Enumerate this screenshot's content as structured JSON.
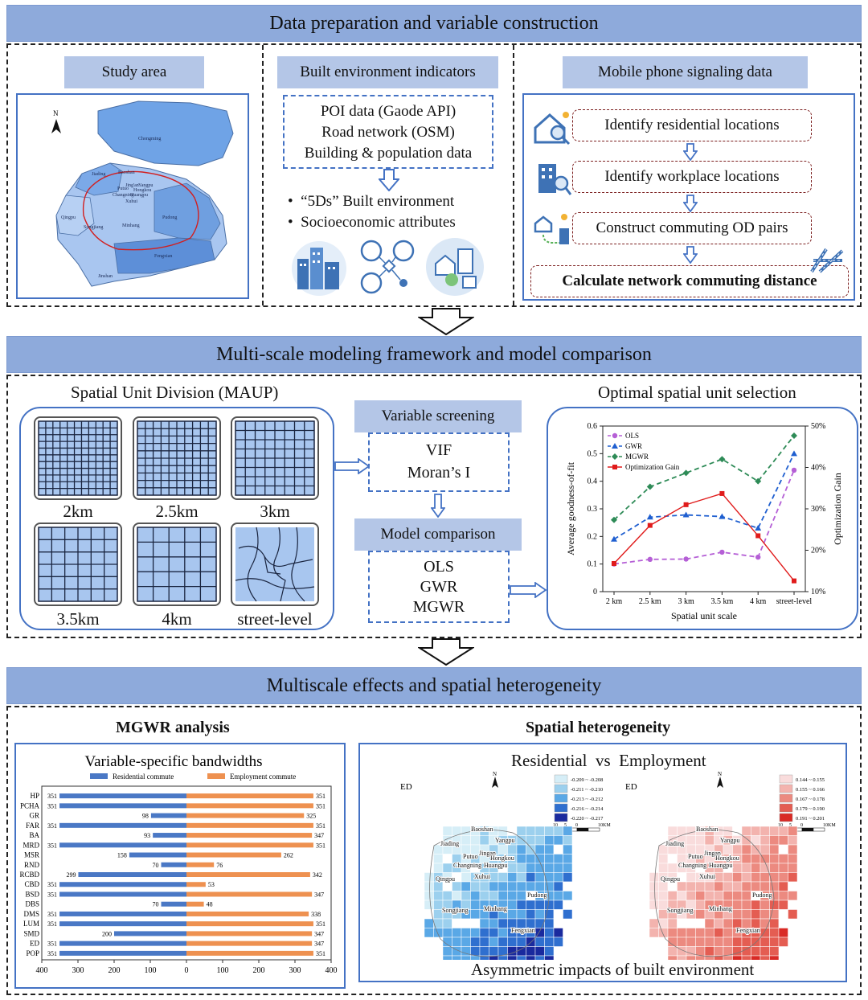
{
  "section1": {
    "banner": "Data preparation and variable construction",
    "study_area": {
      "title": "Study area",
      "north": "N",
      "districts": [
        "Chongming",
        "Jiading",
        "Baoshan",
        "Yangpu",
        "Putuo",
        "Jing'an",
        "Hongkou",
        "Changning",
        "Huangpu",
        "Xuhui",
        "Qingpu",
        "Songjiang",
        "Minhang",
        "Pudong",
        "Jinshan",
        "Fengxian"
      ]
    },
    "built_env": {
      "title": "Built environment indicators",
      "sources": [
        "POI data (Gaode API)",
        "Road network (OSM)",
        "Building & population data"
      ],
      "bullets": [
        "“5Ds” Built environment",
        "Socioeconomic attributes"
      ]
    },
    "mobile": {
      "title": "Mobile phone signaling data",
      "steps": [
        "Identify residential locations",
        "Identify workplace locations",
        "Construct commuting OD pairs",
        "Calculate network commuting distance"
      ]
    }
  },
  "section2": {
    "banner": "Multi-scale modeling framework and model comparison",
    "spatial_division": {
      "title": "Spatial Unit Division (MAUP)",
      "scales": [
        "2km",
        "2.5km",
        "3km",
        "3.5km",
        "4km",
        "street-level"
      ]
    },
    "variable_screening": {
      "title": "Variable screening",
      "items": [
        "VIF",
        "Moran’s I"
      ]
    },
    "model_comparison": {
      "title": "Model comparison",
      "items": [
        "OLS",
        "GWR",
        "MGWR"
      ]
    },
    "optimal": {
      "title": "Optimal spatial unit selection"
    }
  },
  "section3": {
    "banner": "Multiscale effects and spatial heterogeneity",
    "mgwr_title": "MGWR analysis",
    "spatial_title": "Spatial heterogeneity",
    "map_title": "Residential  vs  Employment",
    "map_caption": "Asymmetric impacts of built environment",
    "map_var": "ED",
    "north": "N",
    "scale_ticks": [
      "10",
      "5",
      "0",
      "10KM"
    ],
    "legend_blue": [
      "-0.209 ~ -0.208",
      "-0.211 ~ -0.210",
      "-0.213 ~ -0.212",
      "-0.216 ~ -0.214",
      "-0.220 ~ -0.217"
    ],
    "legend_red": [
      "0.144 ~ 0.155",
      "0.155 ~ 0.166",
      "0.167 ~ 0.178",
      "0.179 ~ 0.190",
      "0.191 ~ 0.201"
    ],
    "map_labels": [
      "Baoshan",
      "Jiading",
      "Yangpu",
      "Jingan",
      "Hongkou",
      "Putuo",
      "Changning",
      "Huangpu",
      "Qingpu",
      "Xuhui",
      "Pudong",
      "Songjiang",
      "Minhang",
      "Fengxian"
    ],
    "blue_colors": [
      "#d6eef7",
      "#9cd0ee",
      "#5aa8e6",
      "#2f6fcf",
      "#1a2a9e"
    ],
    "red_colors": [
      "#f9dcdc",
      "#f3b3ae",
      "#ec8a80",
      "#e45d52",
      "#d92a25"
    ]
  },
  "chart_data": [
    {
      "type": "line",
      "x": [
        "2 km",
        "2.5 km",
        "3 km",
        "3.5 km",
        "4 km",
        "street-level"
      ],
      "xlabel": "Spatial unit scale",
      "ylabel": "Average goodness-of-fit",
      "y2label": "Optimization Gain",
      "ylim": [
        0,
        0.6
      ],
      "y2lim": [
        10,
        50
      ],
      "yticks": [
        "0",
        "0.1",
        "0.2",
        "0.3",
        "0.4",
        "0.5",
        "0.6"
      ],
      "y2ticks": [
        "10%",
        "20%",
        "30%",
        "40%",
        "50%"
      ],
      "legend_position": "top-left",
      "series": [
        {
          "name": "OLS",
          "axis": "left",
          "color": "#b55fd6",
          "marker": "circle",
          "dash": true,
          "values": [
            0.1,
            0.117,
            0.118,
            0.143,
            0.125,
            0.44
          ]
        },
        {
          "name": "GWR",
          "axis": "left",
          "color": "#1f5fd0",
          "marker": "triangle",
          "dash": true,
          "values": [
            0.19,
            0.27,
            0.278,
            0.272,
            0.23,
            0.5
          ]
        },
        {
          "name": "MGWR",
          "axis": "left",
          "color": "#2e8b57",
          "marker": "diamond",
          "dash": true,
          "values": [
            0.26,
            0.38,
            0.43,
            0.48,
            0.4,
            0.565
          ]
        },
        {
          "name": "Optimization Gain",
          "axis": "right",
          "color": "#e01b1b",
          "marker": "square",
          "dash": false,
          "values": [
            16.8,
            26.0,
            31.0,
            33.7,
            23.5,
            12.6
          ]
        }
      ]
    },
    {
      "type": "bar",
      "title": "Variable-specific bandwidths",
      "categories": [
        "HP",
        "PCHA",
        "GR",
        "FAR",
        "BA",
        "MRD",
        "MSR",
        "RND",
        "RCBD",
        "CBD",
        "BSD",
        "DBS",
        "DMS",
        "LUM",
        "SMD",
        "ED",
        "POP"
      ],
      "xlim": [
        -400,
        400
      ],
      "xticks": [
        "400",
        "300",
        "200",
        "100",
        "0",
        "100",
        "200",
        "300",
        "400"
      ],
      "legend_position": "top",
      "series": [
        {
          "name": "Residential commute",
          "color": "#4a78c5",
          "values": [
            351,
            351,
            98,
            351,
            93,
            351,
            158,
            70,
            299,
            351,
            351,
            70,
            351,
            351,
            200,
            351,
            351
          ]
        },
        {
          "name": "Employment commute",
          "color": "#ee9150",
          "values": [
            351,
            351,
            325,
            351,
            347,
            351,
            262,
            76,
            342,
            53,
            347,
            48,
            338,
            351,
            347,
            347,
            351
          ]
        }
      ]
    }
  ]
}
